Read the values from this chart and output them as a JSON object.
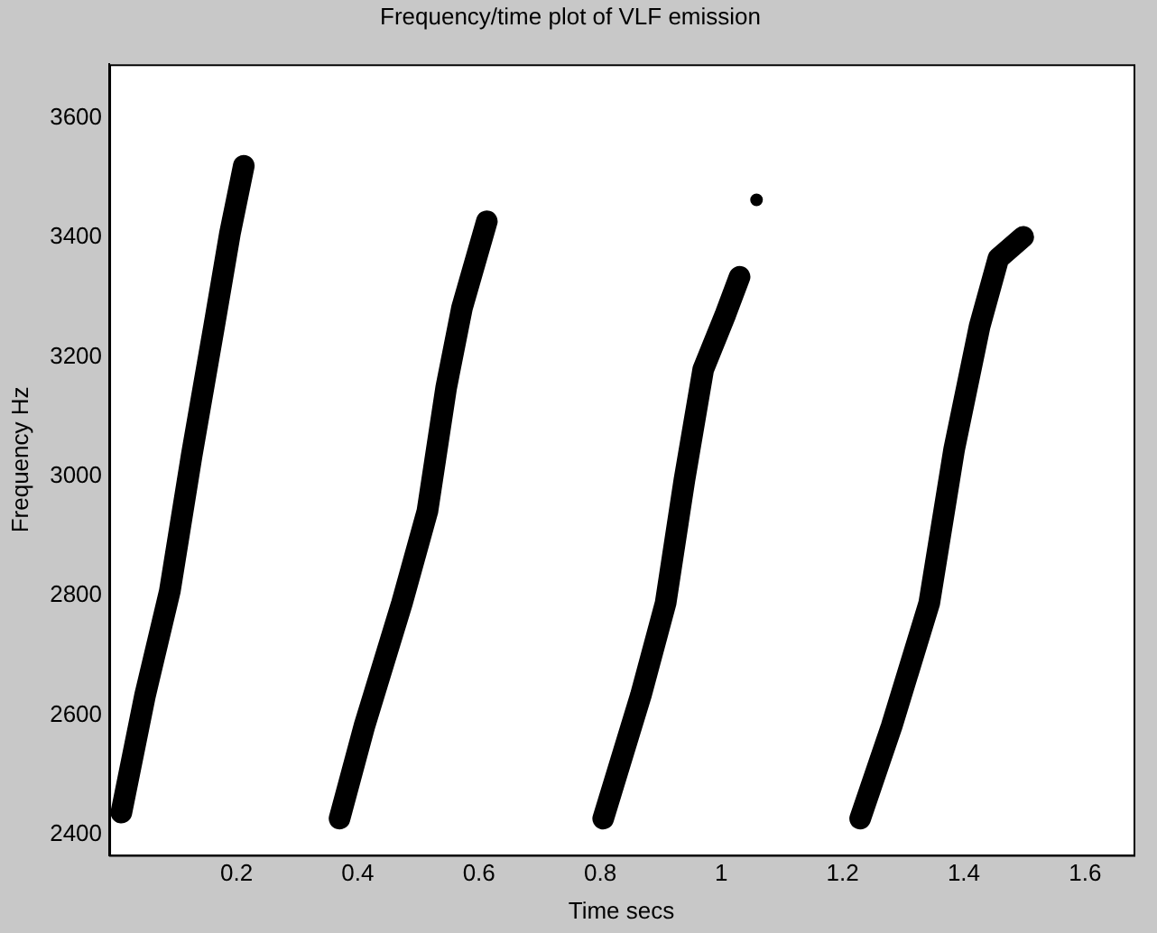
{
  "chart_data": {
    "type": "line",
    "title": "Frequency/time plot of VLF emission",
    "xlabel": "Time secs",
    "ylabel": "Frequency Hz",
    "xlim": [
      -0.01,
      1.68
    ],
    "xticks": [
      0.2,
      0.4,
      0.6,
      0.8,
      1,
      1.2,
      1.4,
      1.6
    ],
    "ylim": [
      2366,
      3690
    ],
    "yticks": [
      2400,
      2600,
      2800,
      3000,
      3200,
      3400,
      3600
    ],
    "grid": false,
    "legend": false,
    "marker": "none",
    "line_style": "solid",
    "series": [
      {
        "color": "#000000",
        "x": [
          0.01,
          0.049,
          0.09,
          0.126,
          0.163,
          0.189,
          0.212
        ],
        "values": [
          2437,
          2633,
          2808,
          3035,
          3251,
          3406,
          3520
        ]
      },
      {
        "color": "#000000",
        "x": [
          0.37,
          0.411,
          0.473,
          0.515,
          0.546,
          0.572,
          0.613
        ],
        "values": [
          2427,
          2582,
          2788,
          2942,
          3149,
          3282,
          3427
        ]
      },
      {
        "color": "#000000",
        "x": [
          0.805,
          0.867,
          0.908,
          0.939,
          0.97,
          1.007,
          1.03
        ],
        "values": [
          2427,
          2633,
          2788,
          2994,
          3179,
          3272,
          3334
        ]
      },
      {
        "color": "#000000",
        "x": [
          1.229,
          1.281,
          1.343,
          1.384,
          1.426,
          1.457,
          1.498
        ],
        "values": [
          2427,
          2582,
          2788,
          3045,
          3251,
          3365,
          3401
        ]
      },
      {
        "type": "scatter",
        "marker": "circle",
        "color": "#000000",
        "x": [
          1.058
        ],
        "values": [
          3463
        ]
      }
    ]
  }
}
